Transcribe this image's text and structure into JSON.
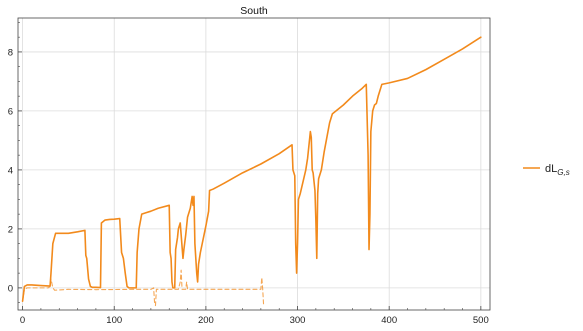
{
  "chart_data": {
    "type": "line",
    "title": "South",
    "xlabel": "",
    "ylabel": "",
    "xlim": [
      -5,
      510
    ],
    "ylim": [
      -0.75,
      9.15
    ],
    "x_ticks": [
      "0",
      "100",
      "200",
      "300",
      "400",
      "500"
    ],
    "y_ticks": [
      "0",
      "2",
      "4",
      "6",
      "8"
    ],
    "grid": true,
    "legend_position": "right",
    "legend": {
      "main": "dL",
      "subscript": "G,s"
    },
    "colors": {
      "series": "#f28a1c",
      "grid": "#dcdcdc",
      "frame": "#444444"
    },
    "series": [
      {
        "name": "dL_G,s",
        "style": "solid",
        "points": [
          [
            0,
            -0.45
          ],
          [
            2,
            0.05
          ],
          [
            5,
            0.1
          ],
          [
            10,
            0.1
          ],
          [
            20,
            0.08
          ],
          [
            30,
            0.06
          ],
          [
            31,
            0.5
          ],
          [
            33,
            1.5
          ],
          [
            36,
            1.85
          ],
          [
            40,
            1.85
          ],
          [
            50,
            1.85
          ],
          [
            60,
            1.9
          ],
          [
            68,
            1.95
          ],
          [
            69,
            1.1
          ],
          [
            70,
            1.0
          ],
          [
            72,
            0.3
          ],
          [
            74,
            0.05
          ],
          [
            76,
            0.02
          ],
          [
            80,
            0.02
          ],
          [
            85,
            0.01
          ],
          [
            86,
            2.2
          ],
          [
            90,
            2.3
          ],
          [
            95,
            2.32
          ],
          [
            100,
            2.33
          ],
          [
            106,
            2.35
          ],
          [
            108,
            1.2
          ],
          [
            110,
            1.0
          ],
          [
            112,
            0.5
          ],
          [
            114,
            0.05
          ],
          [
            116,
            0.0
          ],
          [
            120,
            0.0
          ],
          [
            124,
            0.0
          ],
          [
            125,
            1.2
          ],
          [
            127,
            2.0
          ],
          [
            130,
            2.5
          ],
          [
            135,
            2.55
          ],
          [
            140,
            2.6
          ],
          [
            148,
            2.7
          ],
          [
            160,
            2.8
          ],
          [
            161,
            1.2
          ],
          [
            162,
            1.0
          ],
          [
            163,
            0.2
          ],
          [
            164,
            0.0
          ],
          [
            166,
            0.0
          ],
          [
            167,
            1.3
          ],
          [
            169,
            1.7
          ],
          [
            170,
            2.0
          ],
          [
            172,
            2.2
          ],
          [
            175,
            1.0
          ],
          [
            176,
            1.3
          ],
          [
            178,
            1.8
          ],
          [
            180,
            2.4
          ],
          [
            183,
            2.7
          ],
          [
            185,
            3.1
          ],
          [
            186,
            2.8
          ],
          [
            187,
            3.1
          ],
          [
            188,
            1.5
          ],
          [
            190,
            0.5
          ],
          [
            191,
            0.2
          ],
          [
            192,
            0.8
          ],
          [
            194,
            1.2
          ],
          [
            196,
            1.5
          ],
          [
            198,
            1.8
          ],
          [
            200,
            2.1
          ],
          [
            203,
            2.6
          ],
          [
            204,
            3.3
          ],
          [
            208,
            3.35
          ],
          [
            220,
            3.55
          ],
          [
            240,
            3.9
          ],
          [
            260,
            4.2
          ],
          [
            280,
            4.55
          ],
          [
            294,
            4.85
          ],
          [
            295,
            4.0
          ],
          [
            297,
            3.8
          ],
          [
            298,
            1.5
          ],
          [
            299,
            0.5
          ],
          [
            300,
            1.5
          ],
          [
            301,
            3.0
          ],
          [
            303,
            3.2
          ],
          [
            306,
            3.6
          ],
          [
            309,
            4.0
          ],
          [
            311,
            4.4
          ],
          [
            313,
            5.0
          ],
          [
            314,
            5.3
          ],
          [
            315,
            5.1
          ],
          [
            316,
            4.0
          ],
          [
            317,
            3.9
          ],
          [
            319,
            3.3
          ],
          [
            320,
            2.3
          ],
          [
            321,
            1.0
          ],
          [
            322,
            3.2
          ],
          [
            323,
            3.7
          ],
          [
            326,
            4.0
          ],
          [
            329,
            4.6
          ],
          [
            332,
            5.1
          ],
          [
            335,
            5.6
          ],
          [
            338,
            5.9
          ],
          [
            340,
            5.95
          ],
          [
            350,
            6.2
          ],
          [
            360,
            6.5
          ],
          [
            370,
            6.75
          ],
          [
            375,
            6.9
          ],
          [
            377,
            4.5
          ],
          [
            378,
            1.3
          ],
          [
            379,
            2.5
          ],
          [
            380,
            5.3
          ],
          [
            382,
            6.0
          ],
          [
            384,
            6.2
          ],
          [
            386,
            6.25
          ],
          [
            388,
            6.5
          ],
          [
            390,
            6.7
          ],
          [
            392,
            6.9
          ],
          [
            400,
            6.95
          ],
          [
            420,
            7.1
          ],
          [
            440,
            7.4
          ],
          [
            460,
            7.75
          ],
          [
            480,
            8.1
          ],
          [
            500,
            8.5
          ]
        ]
      },
      {
        "name": "",
        "style": "dashed",
        "points": [
          [
            0,
            -0.45
          ],
          [
            2,
            -0.05
          ],
          [
            5,
            0.0
          ],
          [
            15,
            0.0
          ],
          [
            28,
            0.0
          ],
          [
            30,
            0.05
          ],
          [
            31,
            0.3
          ],
          [
            33,
            0.0
          ],
          [
            35,
            -0.08
          ],
          [
            50,
            -0.05
          ],
          [
            80,
            -0.06
          ],
          [
            120,
            -0.05
          ],
          [
            140,
            -0.05
          ],
          [
            143,
            0.0
          ],
          [
            144,
            -0.5
          ],
          [
            145,
            -0.6
          ],
          [
            146,
            -0.05
          ],
          [
            150,
            -0.05
          ],
          [
            170,
            -0.05
          ],
          [
            172,
            0.2
          ],
          [
            173,
            0.6
          ],
          [
            174,
            -0.05
          ],
          [
            178,
            -0.05
          ],
          [
            179,
            0.2
          ],
          [
            180,
            -0.05
          ],
          [
            200,
            -0.05
          ],
          [
            230,
            -0.05
          ],
          [
            260,
            -0.05
          ],
          [
            261,
            0.35
          ],
          [
            262,
            -0.05
          ],
          [
            263,
            -0.6
          ]
        ]
      }
    ]
  }
}
